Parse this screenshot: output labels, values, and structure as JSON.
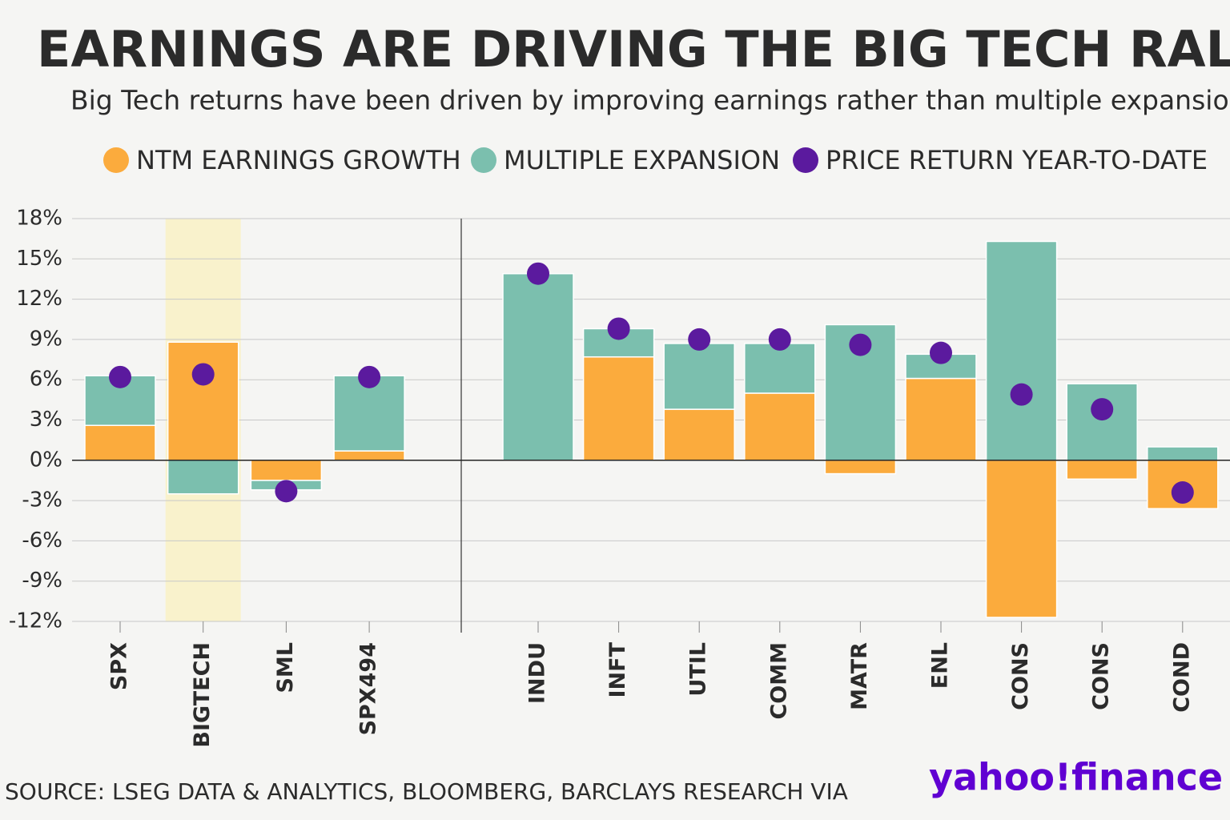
{
  "chart_data": {
    "type": "bar",
    "stacked": true,
    "title": "EARNINGS ARE DRIVING THE BIG TECH RALLY",
    "subtitle": "Big Tech returns have been driven by improving earnings rather than multiple expansion",
    "source": "SOURCE: LSEG DATA & ANALYTICS, BLOOMBERG, BARCLAYS RESEARCH VIA",
    "logo": "yahoo!finance",
    "categories": [
      "SPX",
      "BIGTECH",
      "SML",
      "SPX494",
      "INDU",
      "INFT",
      "UTIL",
      "COMM",
      "MATR",
      "ENL",
      "CONS",
      "CONS",
      "COND"
    ],
    "highlight": "BIGTECH",
    "series": [
      {
        "name": "NTM EARNINGS GROWTH",
        "color": "#fbab3d",
        "values": [
          2.6,
          8.8,
          -1.5,
          0.7,
          0,
          7.7,
          3.8,
          5.0,
          -1.0,
          6.1,
          -11.7,
          -1.4,
          -3.6
        ]
      },
      {
        "name": "MULTIPLE EXPANSION",
        "color": "#7bbfae",
        "values": [
          3.7,
          -2.5,
          -0.7,
          5.6,
          13.9,
          2.1,
          4.9,
          3.7,
          10.1,
          1.8,
          16.3,
          5.7,
          1.0
        ]
      },
      {
        "name": "PRICE RETURN YEAR-TO-DATE",
        "color": "#5b1a9e",
        "type": "scatter",
        "values": [
          6.2,
          6.4,
          -2.3,
          6.2,
          13.9,
          9.8,
          9.0,
          9.0,
          8.6,
          8.0,
          4.9,
          3.8,
          -2.4
        ]
      }
    ],
    "ylim": [
      -12,
      18
    ],
    "yticks": [
      {
        "value": 18,
        "label": "18%"
      },
      {
        "value": 15,
        "label": "15%"
      },
      {
        "value": 12,
        "label": "12%"
      },
      {
        "value": 9,
        "label": "9%"
      },
      {
        "value": 6,
        "label": "6%"
      },
      {
        "value": 3,
        "label": "3%"
      },
      {
        "value": 0,
        "label": "0%"
      },
      {
        "value": -3,
        "label": "-3%"
      },
      {
        "value": -6,
        "label": "-6%"
      },
      {
        "value": -9,
        "label": "-9%"
      },
      {
        "value": -12,
        "label": "-12%"
      }
    ],
    "grid": true
  }
}
